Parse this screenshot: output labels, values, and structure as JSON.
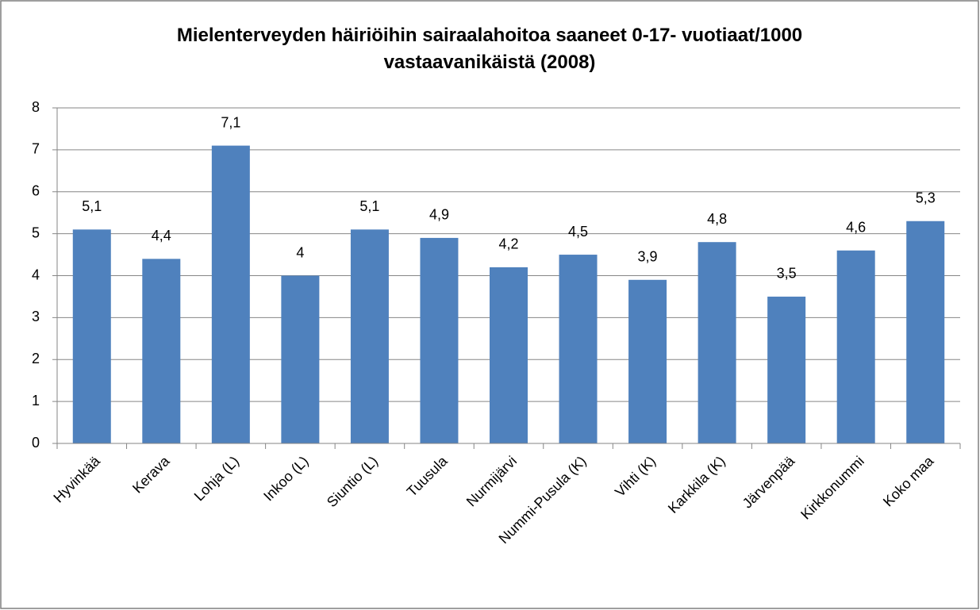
{
  "chart_data": {
    "type": "bar",
    "title": "Mielenterveyden häiriöihin sairaalahoitoa saaneet 0-17-  vuotiaat/1000 vastaavanikäistä (2008)",
    "categories": [
      "Hyvinkää",
      "Kerava",
      "Lohja (L)",
      "Inkoo (L)",
      "Siuntio (L)",
      "Tuusula",
      "Nurmijärvi",
      "Nummi-Pusula (K)",
      "Vihti (K)",
      "Karkkila (K)",
      "Järvenpää",
      "Kirkkonummi",
      "Koko maa"
    ],
    "values": [
      5.1,
      4.4,
      7.1,
      4,
      5.1,
      4.9,
      4.2,
      4.5,
      3.9,
      4.8,
      3.5,
      4.6,
      5.3
    ],
    "value_labels": [
      "5,1",
      "4,4",
      "7,1",
      "4",
      "5,1",
      "4,9",
      "4,2",
      "4,5",
      "3,9",
      "4,8",
      "3,5",
      "4,6",
      "5,3"
    ],
    "color": "#4f81bd",
    "ylim": [
      0,
      8
    ],
    "yticks": [
      0,
      1,
      2,
      3,
      4,
      5,
      6,
      7,
      8
    ],
    "grid": true
  }
}
